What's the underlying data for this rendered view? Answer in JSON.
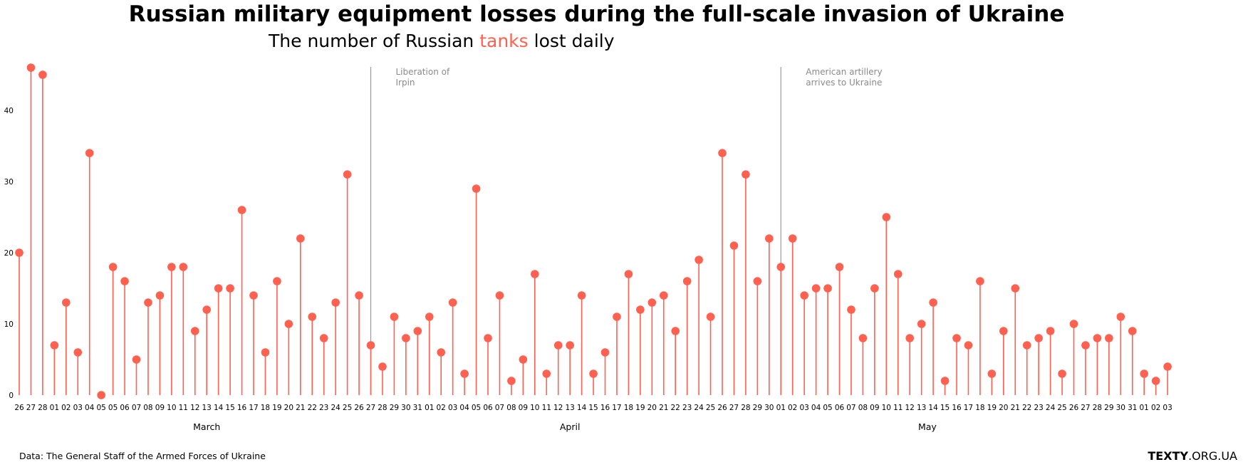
{
  "title": "Russian military equipment losses during the full-scale invasion of Ukraine",
  "subtitle": {
    "before": "The number of Russian ",
    "accent": "tanks",
    "after": " lost daily"
  },
  "source_text": "Data: The General Staff of the Armed Forces of Ukraine",
  "brand": {
    "bold": "TEXTY",
    "rest": ".ORG.UA"
  },
  "colors": {
    "accent": "#ff6150",
    "annotation": "#8a8a8a"
  },
  "chart_data": {
    "type": "lollipop",
    "x_tick_labels": [
      "26",
      "27",
      "28",
      "01",
      "02",
      "03",
      "04",
      "05",
      "05",
      "06",
      "07",
      "08",
      "09",
      "10",
      "11",
      "12",
      "13",
      "14",
      "15",
      "16",
      "17",
      "18",
      "19",
      "20",
      "21",
      "22",
      "23",
      "24",
      "25",
      "26",
      "27",
      "28",
      "29",
      "30",
      "31",
      "01",
      "02",
      "03",
      "04",
      "05",
      "06",
      "07",
      "08",
      "09",
      "10",
      "11",
      "12",
      "13",
      "14",
      "15",
      "16",
      "17",
      "18",
      "19",
      "20",
      "21",
      "22",
      "23",
      "24",
      "25",
      "26",
      "27",
      "28",
      "29",
      "30",
      "01",
      "02",
      "03",
      "04",
      "05",
      "06",
      "07",
      "08",
      "09",
      "10",
      "11",
      "12",
      "13",
      "14",
      "15",
      "16",
      "17",
      "18",
      "19",
      "20",
      "21",
      "22",
      "23",
      "24",
      "25",
      "26",
      "27",
      "28",
      "29",
      "30",
      "31",
      "01",
      "02",
      "03"
    ],
    "values": [
      20,
      46,
      45,
      7,
      13,
      6,
      34,
      0,
      18,
      16,
      5,
      13,
      14,
      18,
      18,
      9,
      12,
      15,
      15,
      26,
      14,
      6,
      16,
      10,
      22,
      11,
      8,
      13,
      31,
      14,
      7,
      4,
      11,
      8,
      9,
      11,
      6,
      13,
      3,
      29,
      8,
      14,
      2,
      5,
      17,
      3,
      7,
      7,
      14,
      3,
      6,
      11,
      17,
      12,
      13,
      14,
      9,
      16,
      19,
      11,
      34,
      21,
      31,
      16,
      22,
      18,
      22,
      14,
      15,
      15,
      18,
      12,
      8,
      15,
      25,
      17,
      8,
      10,
      13,
      2,
      8,
      7,
      16,
      3,
      9,
      15,
      7,
      8,
      9,
      3,
      10,
      7,
      8,
      8,
      11,
      9,
      3,
      2,
      4
    ],
    "month_labels": [
      {
        "label": "March",
        "at_index": 16
      },
      {
        "label": "April",
        "at_index": 47
      },
      {
        "label": "May",
        "at_index": 77.5
      }
    ],
    "annotations": [
      {
        "text_lines": [
          "Liberation of",
          "Irpin"
        ],
        "at_index": 30
      },
      {
        "text_lines": [
          "American artillery",
          "arrives to Ukraine"
        ],
        "at_index": 65
      }
    ],
    "yticks": [
      0,
      10,
      20,
      30,
      40
    ],
    "ylim": [
      0,
      46
    ],
    "grid": false
  }
}
